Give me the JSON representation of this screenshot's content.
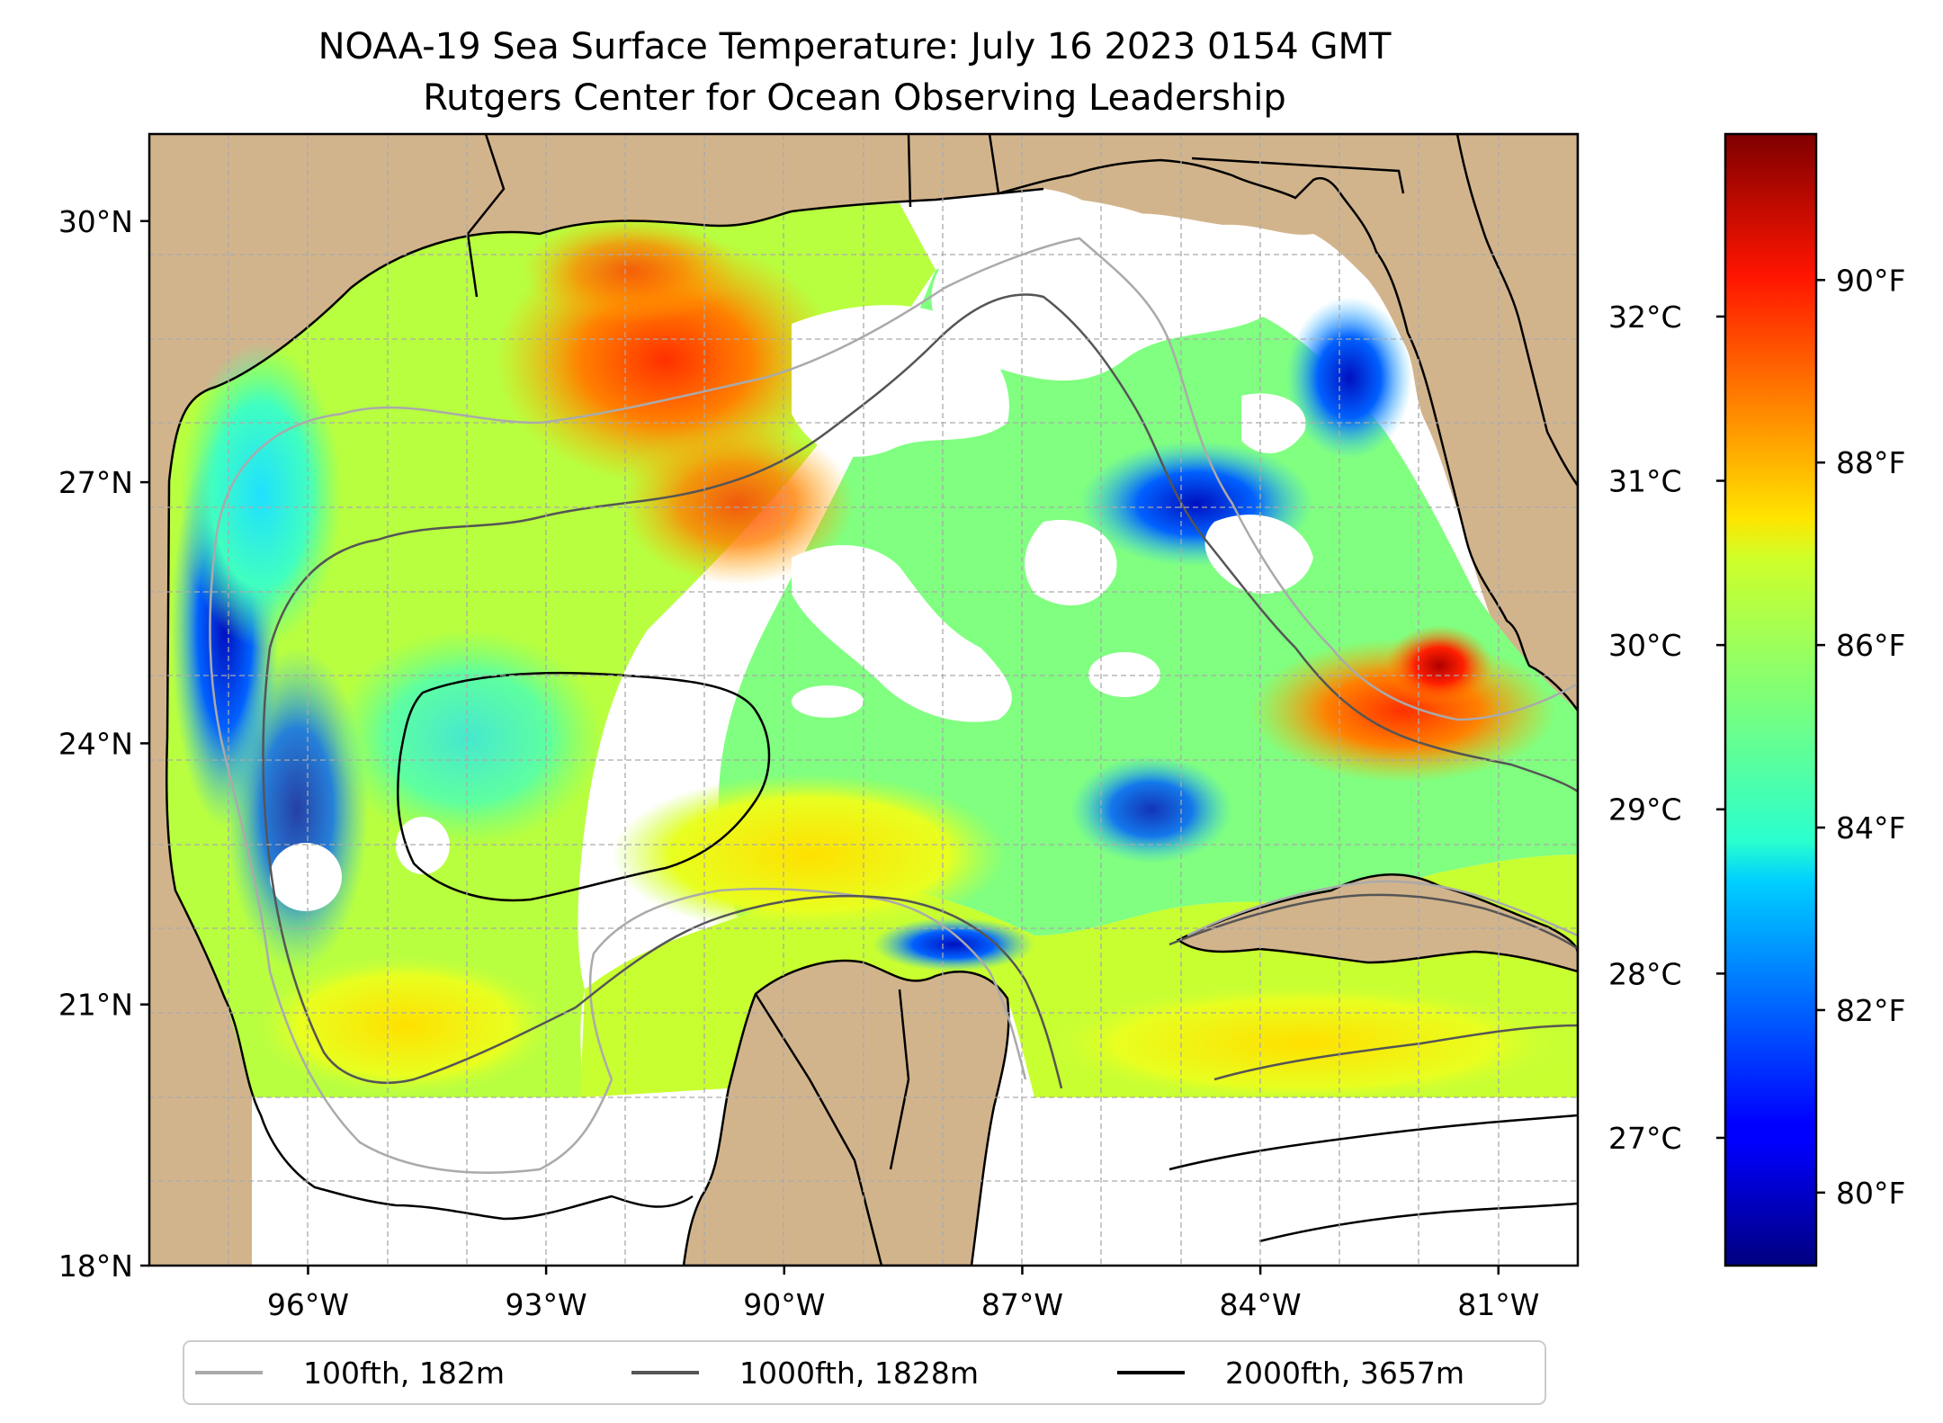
{
  "title": {
    "line1": "NOAA-19 Sea Surface Temperature: July 16 2023 0154 GMT",
    "line2": "Rutgers Center for Ocean Observing Leadership"
  },
  "map": {
    "lon_range": [
      -98.0,
      -80.0
    ],
    "lat_range": [
      18.0,
      31.0
    ],
    "grid": true,
    "lon_ticks": [
      {
        "value": -96,
        "label": "96°W"
      },
      {
        "value": -93,
        "label": "93°W"
      },
      {
        "value": -90,
        "label": "90°W"
      },
      {
        "value": -87,
        "label": "87°W"
      },
      {
        "value": -84,
        "label": "84°W"
      },
      {
        "value": -81,
        "label": "81°W"
      }
    ],
    "lat_ticks": [
      {
        "value": 18,
        "label": "18°N"
      },
      {
        "value": 21,
        "label": "21°N"
      },
      {
        "value": 24,
        "label": "24°N"
      },
      {
        "value": 27,
        "label": "27°N"
      },
      {
        "value": 30,
        "label": "30°N"
      }
    ],
    "colors": {
      "land": "#d2b48c",
      "coast": "#000000",
      "no_data": "#ffffff",
      "grid": "#aaaaaa",
      "water_features": "#9bb0e0"
    }
  },
  "colorbar": {
    "colormap": "jet",
    "range_f": [
      79.2,
      91.6
    ],
    "f_ticks": [
      {
        "value": 80,
        "label": "80°F"
      },
      {
        "value": 82,
        "label": "82°F"
      },
      {
        "value": 84,
        "label": "84°F"
      },
      {
        "value": 86,
        "label": "86°F"
      },
      {
        "value": 88,
        "label": "88°F"
      },
      {
        "value": 90,
        "label": "90°F"
      }
    ],
    "c_ticks": [
      {
        "value": 27,
        "label": "27°C"
      },
      {
        "value": 28,
        "label": "28°C"
      },
      {
        "value": 29,
        "label": "29°C"
      },
      {
        "value": 30,
        "label": "30°C"
      },
      {
        "value": 31,
        "label": "31°C"
      },
      {
        "value": 32,
        "label": "32°C"
      }
    ]
  },
  "legend": {
    "items": [
      {
        "label": "100fth, 182m",
        "color": "#aaaaaa"
      },
      {
        "label": "1000fth, 1828m",
        "color": "#555555"
      },
      {
        "label": "2000fth, 3657m",
        "color": "#000000"
      }
    ]
  }
}
